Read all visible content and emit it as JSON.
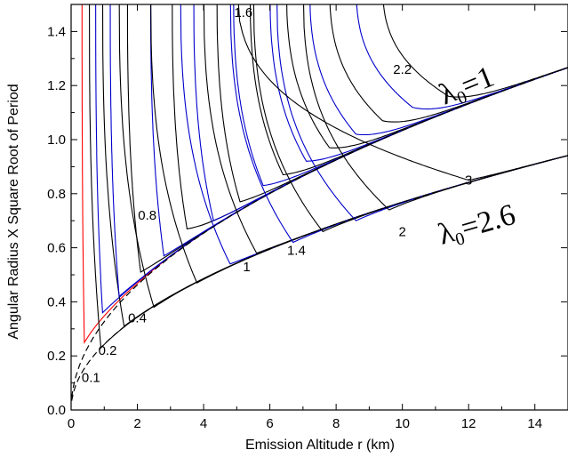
{
  "chart_data": {
    "type": "line",
    "title": "",
    "xlabel": "Emission Altitude r (km)",
    "ylabel": "Angular Radius X Square Root of Period",
    "xlim": [
      0,
      15
    ],
    "ylim": [
      0,
      1.5
    ],
    "x_ticks": [
      "0",
      "2",
      "4",
      "6",
      "8",
      "10",
      "12",
      "14"
    ],
    "y_ticks": [
      "0.0",
      "0.2",
      "0.4",
      "0.6",
      "0.8",
      "1.0",
      "1.2",
      "1.4"
    ],
    "grid": false,
    "envelopes": [
      {
        "label_symbol": "λ",
        "label_sub": "0",
        "label_value": "=1",
        "coef": 0.327
      },
      {
        "label_symbol": "λ",
        "label_sub": "0",
        "label_value": "=2.6",
        "coef": 0.243
      }
    ],
    "curve_labels": [
      {
        "text": "0.1",
        "x": 0.6,
        "y": 0.12
      },
      {
        "text": "0.2",
        "x": 1.1,
        "y": 0.22
      },
      {
        "text": "0.4",
        "x": 2.0,
        "y": 0.34
      },
      {
        "text": "0.8",
        "x": 2.3,
        "y": 0.72
      },
      {
        "text": "1",
        "x": 5.3,
        "y": 0.53
      },
      {
        "text": "1.4",
        "x": 6.8,
        "y": 0.59
      },
      {
        "text": "1.6",
        "x": 5.2,
        "y": 1.47
      },
      {
        "text": "2",
        "x": 10.0,
        "y": 0.66
      },
      {
        "text": "2.2",
        "x": 10.0,
        "y": 1.26
      },
      {
        "text": "3",
        "x": 12.0,
        "y": 0.85
      }
    ],
    "series": [
      {
        "name": "",
        "color": "#ff0000",
        "asym": 0.33,
        "env": 0,
        "min_x": 0.4,
        "min_y": 0.25
      },
      {
        "name": "",
        "color": "#000000",
        "asym": 0.55,
        "env": 1,
        "min_x": 0.9,
        "min_y": 0.23
      },
      {
        "name": "",
        "color": "#0000cc",
        "asym": 0.74,
        "env": 0,
        "min_x": 0.95,
        "min_y": 0.36
      },
      {
        "name": "",
        "color": "#000000",
        "asym": 0.95,
        "env": 1,
        "min_x": 1.6,
        "min_y": 0.31
      },
      {
        "name": "",
        "color": "#0000cc",
        "asym": 1.18,
        "env": 0,
        "min_x": 1.45,
        "min_y": 0.42
      },
      {
        "name": "",
        "color": "#000000",
        "asym": 1.45,
        "env": 1,
        "min_x": 2.5,
        "min_y": 0.38
      },
      {
        "name": "",
        "color": "#000000",
        "asym": 1.7,
        "env": 0,
        "min_x": 2.1,
        "min_y": 0.51
      },
      {
        "name": "",
        "color": "#0000cc",
        "asym": 2.4,
        "env": 0,
        "min_x": 2.8,
        "min_y": 0.57
      },
      {
        "name": "",
        "color": "#000000",
        "asym": 2.4,
        "env": 1,
        "min_x": 3.8,
        "min_y": 0.47
      },
      {
        "name": "",
        "color": "#000000",
        "asym": 3.05,
        "env": 0,
        "min_x": 3.5,
        "min_y": 0.67
      },
      {
        "name": "",
        "color": "#0000cc",
        "asym": 3.3,
        "env": 1,
        "min_x": 4.8,
        "min_y": 0.54
      },
      {
        "name": "",
        "color": "#0000cc",
        "asym": 3.7,
        "env": 0,
        "min_x": 4.3,
        "min_y": 0.7
      },
      {
        "name": "",
        "color": "#000000",
        "asym": 4.0,
        "env": 1,
        "min_x": 5.6,
        "min_y": 0.58
      },
      {
        "name": "",
        "color": "#000000",
        "asym": 4.4,
        "env": 0,
        "min_x": 5.1,
        "min_y": 0.77
      },
      {
        "name": "",
        "color": "#0000cc",
        "asym": 4.8,
        "env": 1,
        "min_x": 6.7,
        "min_y": 0.62
      },
      {
        "name": "",
        "color": "#0000cc",
        "asym": 4.9,
        "env": 0,
        "min_x": 5.8,
        "min_y": 0.83
      },
      {
        "name": "",
        "color": "#000000",
        "asym": 5.4,
        "env": 0,
        "min_x": 6.4,
        "min_y": 0.87
      },
      {
        "name": "",
        "color": "#000000",
        "asym": 5.5,
        "env": 1,
        "min_x": 7.6,
        "min_y": 0.66
      },
      {
        "name": "",
        "color": "#0000cc",
        "asym": 6.0,
        "env": 0,
        "min_x": 7.1,
        "min_y": 0.92
      },
      {
        "name": "",
        "color": "#0000cc",
        "asym": 6.2,
        "env": 1,
        "min_x": 8.6,
        "min_y": 0.7
      },
      {
        "name": "",
        "color": "#000000",
        "asym": 6.5,
        "env": 0,
        "min_x": 7.8,
        "min_y": 0.97
      },
      {
        "name": "",
        "color": "#000000",
        "asym": 7.0,
        "env": 1,
        "min_x": 9.6,
        "min_y": 0.74
      },
      {
        "name": "",
        "color": "#0000cc",
        "asym": 7.2,
        "env": 0,
        "min_x": 8.6,
        "min_y": 1.02
      },
      {
        "name": "",
        "color": "#000000",
        "asym": 7.8,
        "env": 0,
        "min_x": 9.4,
        "min_y": 1.07
      },
      {
        "name": "",
        "color": "#0000cc",
        "asym": 8.6,
        "env": 0,
        "min_x": 10.3,
        "min_y": 1.12
      },
      {
        "name": "",
        "color": "#000000",
        "asym": 9.4,
        "env": 0,
        "min_x": 11.4,
        "min_y": 1.16
      },
      {
        "name": "",
        "color": "#000000",
        "asym": 5.0,
        "env": 1,
        "min_x": 12.0,
        "min_y": 0.85
      }
    ]
  }
}
